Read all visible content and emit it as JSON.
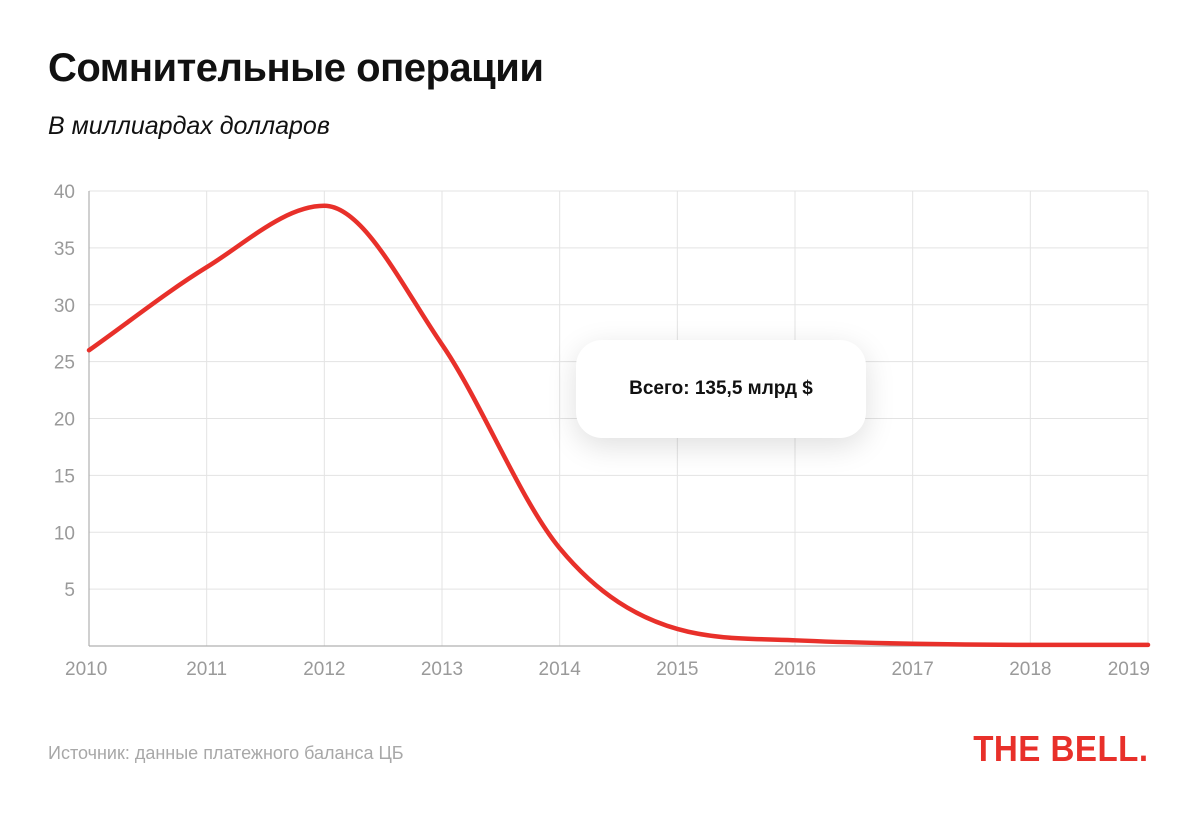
{
  "header": {
    "title": "Сомнительные операции",
    "subtitle": "В миллиардах долларов"
  },
  "annotation": {
    "total_text": "Всего: 135,5 млрд $"
  },
  "footer": {
    "source": "Источник: данные платежного баланса ЦБ",
    "logo_text": "THE BELL."
  },
  "colors": {
    "line": "#e8302a",
    "grid": "#e3e3e3",
    "axis": "#b0b0b0",
    "tick_text": "#9a9a9a",
    "logo": "#e8302a"
  },
  "chart_data": {
    "type": "line",
    "title": "Сомнительные операции",
    "subtitle": "В миллиардах долларов",
    "xlabel": "",
    "ylabel": "",
    "x": [
      2010,
      2011,
      2012,
      2013,
      2014,
      2015,
      2016,
      2017,
      2018,
      2019
    ],
    "x_tick_labels": [
      "2010",
      "2011",
      "2012",
      "2013",
      "2014",
      "2015",
      "2016",
      "2017",
      "2018",
      "2019"
    ],
    "y_ticks": [
      5,
      10,
      15,
      20,
      25,
      30,
      35,
      40
    ],
    "y_tick_labels": [
      "5",
      "10",
      "15",
      "20",
      "25",
      "30",
      "35",
      "40"
    ],
    "xlim": [
      2010,
      2019
    ],
    "ylim": [
      0,
      40
    ],
    "grid": true,
    "series": [
      {
        "name": "Сомнительные операции",
        "values": [
          26,
          33.3,
          38.7,
          26.5,
          8.6,
          1.5,
          0.5,
          0.2,
          0.1,
          0.1
        ]
      }
    ],
    "annotation": "Всего: 135,5 млрд $"
  }
}
